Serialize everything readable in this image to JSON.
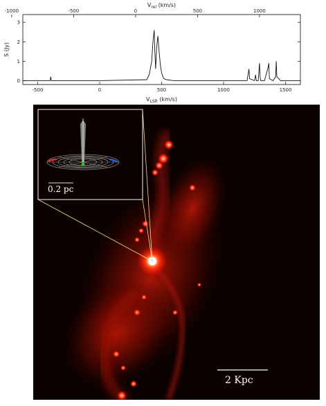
{
  "figure": {
    "inset_scale_label": "0.2 pc",
    "main_scale_label": "2 Kpc"
  },
  "chart_data": {
    "type": "line",
    "top_axis_label": "V_rel  (km/s)",
    "top_ticks": [
      -1000,
      -500,
      0,
      500,
      1000
    ],
    "bottom_axis_label": "V_LSR (km/s)",
    "bottom_ticks": [
      -500,
      0,
      500,
      1000,
      1500
    ],
    "xlim": [
      -620,
      1620
    ],
    "ylabel": "S (Jy)",
    "y_ticks": [
      0,
      1,
      2,
      3
    ],
    "ylim": [
      -0.2,
      3.4
    ],
    "series": [
      {
        "x": [
          -620,
          -400,
          -395,
          -390,
          -385,
          0,
          380,
          400,
          420,
          430,
          440,
          445,
          452,
          460,
          470,
          480,
          490,
          500,
          510,
          520,
          540,
          600,
          1190,
          1200,
          1205,
          1210,
          1250,
          1258,
          1265,
          1280,
          1290,
          1295,
          1300,
          1330,
          1360,
          1365,
          1370,
          1400,
          1420,
          1425,
          1430,
          1460,
          1620
        ],
        "y": [
          0,
          0,
          0.2,
          0,
          0,
          0,
          0.05,
          0.3,
          1.0,
          2.0,
          2.6,
          1.5,
          0.6,
          1.7,
          2.3,
          1.5,
          0.8,
          0.4,
          0.2,
          0.1,
          0.05,
          0,
          0,
          0.4,
          0.6,
          0.1,
          0,
          0.3,
          0,
          0,
          0.9,
          0.2,
          0,
          0,
          0.7,
          0.9,
          0.1,
          0,
          0.2,
          1.0,
          0.2,
          0,
          0
        ]
      }
    ]
  }
}
